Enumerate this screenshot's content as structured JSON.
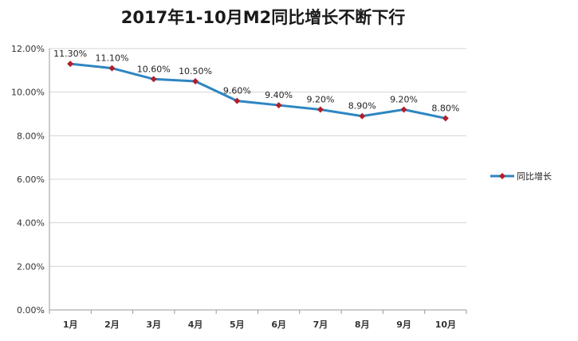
{
  "chart_data": {
    "type": "line",
    "title": "2017年1-10月M2同比增长不断下行",
    "categories": [
      "1月",
      "2月",
      "3月",
      "4月",
      "5月",
      "6月",
      "7月",
      "8月",
      "9月",
      "10月"
    ],
    "series": [
      {
        "name": "同比增长",
        "values": [
          11.3,
          11.1,
          10.6,
          10.5,
          9.6,
          9.4,
          9.2,
          8.9,
          9.2,
          8.8
        ],
        "labels": [
          "11.30%",
          "11.10%",
          "10.60%",
          "10.50%",
          "9.60%",
          "9.40%",
          "9.20%",
          "8.90%",
          "9.20%",
          "8.80%"
        ],
        "line_color": "#2e86c1",
        "marker_color": "#b0202a"
      }
    ],
    "yticks": [
      "0.00%",
      "2.00%",
      "4.00%",
      "6.00%",
      "8.00%",
      "10.00%",
      "12.00%"
    ],
    "ytick_values": [
      0,
      2,
      4,
      6,
      8,
      10,
      12
    ],
    "ylim": [
      0,
      12
    ],
    "xlabel": "",
    "ylabel": "",
    "grid": true,
    "legend": "right"
  }
}
